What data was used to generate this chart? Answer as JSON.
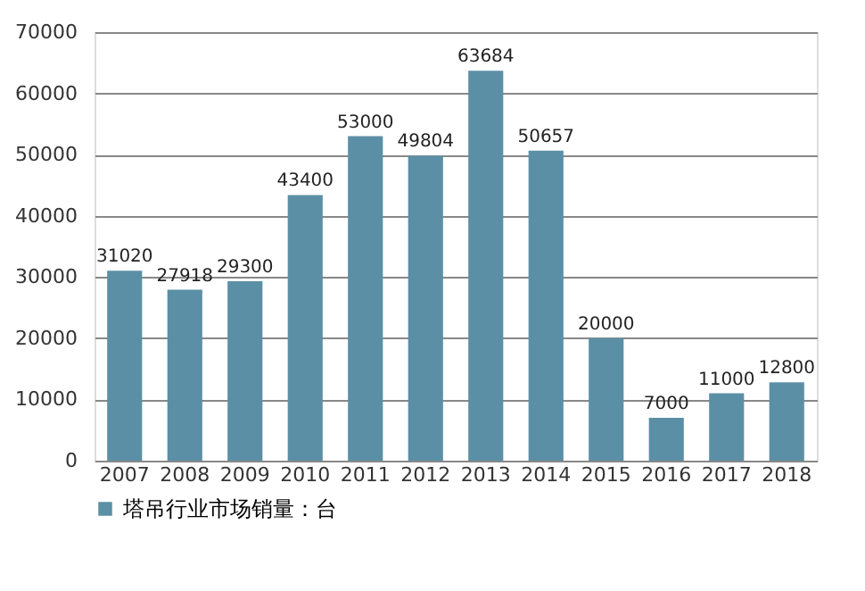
{
  "chart_data": {
    "type": "bar",
    "categories": [
      "2007",
      "2008",
      "2009",
      "2010",
      "2011",
      "2012",
      "2013",
      "2014",
      "2015",
      "2016",
      "2017",
      "2018"
    ],
    "series": [
      {
        "name": "塔吊行业市场销量：台",
        "color": "#5b8fa5",
        "values": [
          31020,
          27918,
          29300,
          43400,
          53000,
          49804,
          63684,
          50657,
          20000,
          7000,
          11000,
          12800
        ]
      }
    ],
    "ylim": [
      0,
      70000
    ],
    "yticks": [
      0,
      10000,
      20000,
      30000,
      40000,
      50000,
      60000,
      70000
    ],
    "grid": "y",
    "legend": "bottom",
    "data_labels": true
  }
}
